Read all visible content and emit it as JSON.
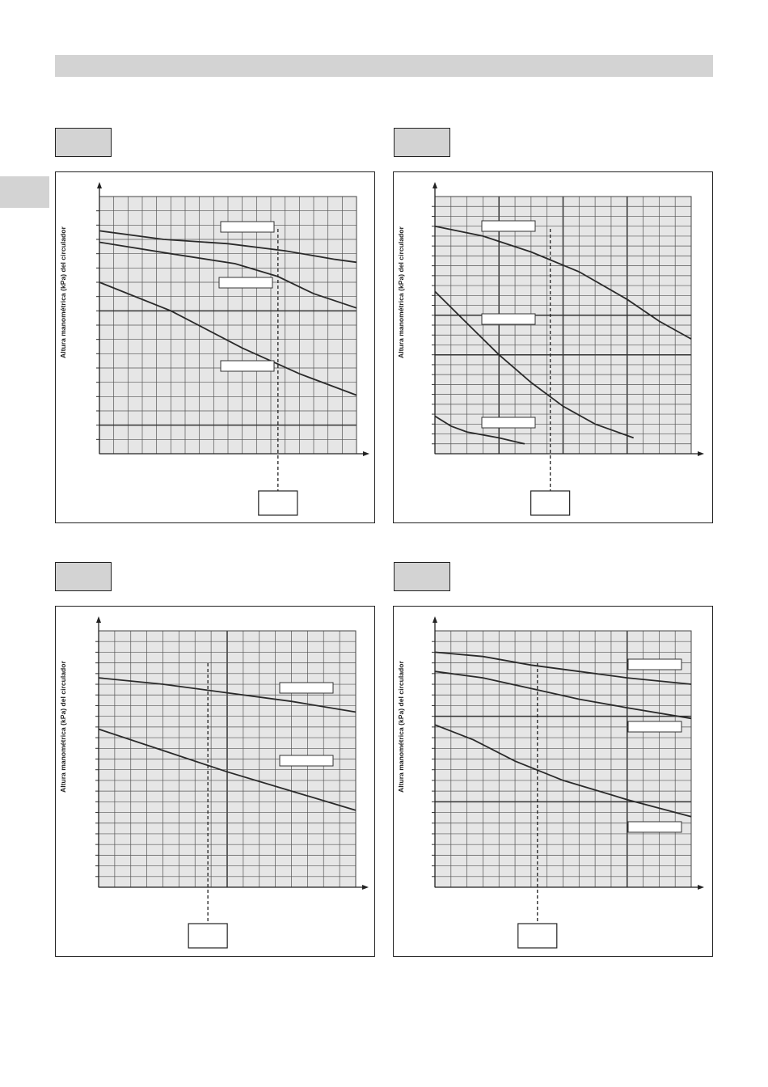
{
  "header": {
    "title": ""
  },
  "side_tab": {
    "label": ""
  },
  "chart_data": [
    {
      "type": "line",
      "id": "chart-1",
      "title": "",
      "xlabel": "",
      "ylabel": "Altura manométrica (kPa) del circulador",
      "xlim": [
        0,
        18
      ],
      "ylim": [
        0,
        9
      ],
      "grid": true,
      "series": [
        {
          "name": "",
          "color": "#2a2a2a",
          "x": [
            0,
            4.5,
            9,
            13,
            16.5,
            18
          ],
          "y": [
            7.8,
            7.5,
            7.35,
            7.1,
            6.8,
            6.7
          ]
        },
        {
          "name": "",
          "color": "#2a2a2a",
          "x": [
            0,
            5,
            9.5,
            12.5,
            15,
            18
          ],
          "y": [
            7.4,
            7.0,
            6.65,
            6.2,
            5.6,
            5.1
          ]
        },
        {
          "name": "",
          "color": "#2a2a2a",
          "x": [
            0,
            5,
            10,
            14,
            18
          ],
          "y": [
            6.0,
            5.0,
            3.7,
            2.8,
            2.05
          ]
        }
      ],
      "legend_labels": [
        "",
        "",
        ""
      ],
      "marker_x": 12.5,
      "marker_label": ""
    },
    {
      "type": "line",
      "id": "chart-2",
      "title": "",
      "xlabel": "",
      "ylabel": "Altura manométrica (kPa) del circulador",
      "xlim": [
        0,
        8
      ],
      "ylim": [
        0,
        13
      ],
      "grid": true,
      "series": [
        {
          "name": "",
          "color": "#2a2a2a",
          "x": [
            0,
            1.5,
            3,
            4.5,
            6,
            7,
            8
          ],
          "y": [
            11.5,
            11.0,
            10.2,
            9.2,
            7.8,
            6.7,
            5.8
          ]
        },
        {
          "name": "",
          "color": "#2a2a2a",
          "x": [
            0,
            1,
            2,
            3,
            4,
            5,
            6.2
          ],
          "y": [
            8.2,
            6.6,
            5.0,
            3.6,
            2.4,
            1.5,
            0.8
          ]
        },
        {
          "name": "",
          "color": "#2a2a2a",
          "x": [
            0,
            0.5,
            1,
            2,
            2.8
          ],
          "y": [
            1.9,
            1.4,
            1.1,
            0.8,
            0.5
          ]
        }
      ],
      "legend_labels": [
        "",
        "",
        ""
      ],
      "marker_x": 3.6,
      "marker_label": ""
    },
    {
      "type": "line",
      "id": "chart-3",
      "title": "",
      "xlabel": "",
      "ylabel": "Altura manométrica (kPa) del circulador",
      "xlim": [
        0,
        8
      ],
      "ylim": [
        0,
        12
      ],
      "grid": true,
      "series": [
        {
          "name": "",
          "color": "#2a2a2a",
          "x": [
            0,
            2,
            4,
            6,
            8
          ],
          "y": [
            9.8,
            9.5,
            9.1,
            8.7,
            8.2
          ]
        },
        {
          "name": "",
          "color": "#2a2a2a",
          "x": [
            0,
            2,
            4,
            6,
            8
          ],
          "y": [
            7.4,
            6.4,
            5.4,
            4.5,
            3.6
          ]
        }
      ],
      "legend_labels": [
        "",
        ""
      ],
      "marker_x": 3.4,
      "marker_label": ""
    },
    {
      "type": "line",
      "id": "chart-4",
      "title": "",
      "xlabel": "",
      "ylabel": "Altura manométrica (kPa) del circulador",
      "xlim": [
        0,
        8
      ],
      "ylim": [
        0,
        12
      ],
      "grid": true,
      "series": [
        {
          "name": "",
          "color": "#2a2a2a",
          "x": [
            0,
            1.5,
            3,
            4.5,
            6,
            8
          ],
          "y": [
            11.0,
            10.8,
            10.4,
            10.1,
            9.8,
            9.5
          ]
        },
        {
          "name": "",
          "color": "#2a2a2a",
          "x": [
            0,
            1.5,
            3,
            4.5,
            6,
            8
          ],
          "y": [
            10.1,
            9.8,
            9.3,
            8.8,
            8.4,
            7.9
          ]
        },
        {
          "name": "",
          "color": "#2a2a2a",
          "x": [
            0,
            1.2,
            2.5,
            4,
            6,
            8
          ],
          "y": [
            7.6,
            6.9,
            5.9,
            5.0,
            4.1,
            3.3
          ]
        }
      ],
      "legend_labels": [
        "",
        "",
        ""
      ],
      "marker_x": 3.2,
      "marker_label": ""
    }
  ]
}
